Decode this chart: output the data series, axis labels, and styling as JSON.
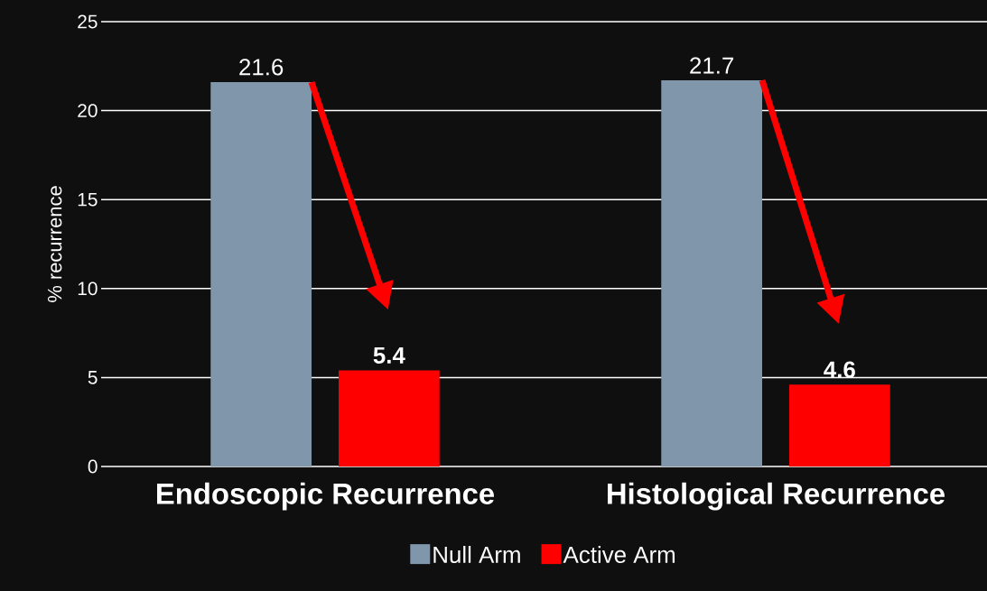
{
  "chart_data": {
    "type": "bar",
    "ylabel": "% recurrence",
    "categories": [
      "Endoscopic Recurrence",
      "Histological Recurrence"
    ],
    "series": [
      {
        "name": "Null Arm",
        "color": "#7f96ab",
        "values": [
          21.6,
          21.7
        ]
      },
      {
        "name": "Active Arm",
        "color": "#ff0000",
        "values": [
          5.4,
          4.6
        ]
      }
    ],
    "ylim": [
      0,
      25
    ],
    "yticks": [
      0,
      5,
      10,
      15,
      20,
      25
    ],
    "grid": "y",
    "legend": "bottom",
    "data_labels": true
  }
}
